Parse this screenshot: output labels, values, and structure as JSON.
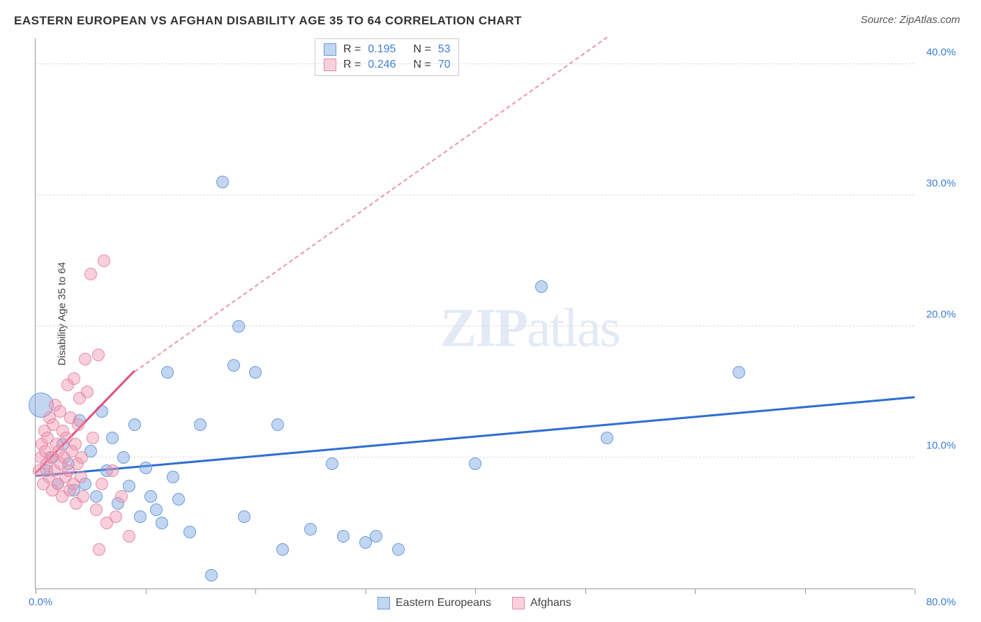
{
  "header": {
    "title": "EASTERN EUROPEAN VS AFGHAN DISABILITY AGE 35 TO 64 CORRELATION CHART",
    "source": "Source: ZipAtlas.com"
  },
  "chart": {
    "type": "scatter",
    "ylabel": "Disability Age 35 to 64",
    "xlim": [
      0,
      80
    ],
    "ylim": [
      0,
      42
    ],
    "x_origin_label": "0.0%",
    "x_max_label": "80.0%",
    "y_ticks": [
      {
        "value": 10,
        "label": "10.0%"
      },
      {
        "value": 20,
        "label": "20.0%"
      },
      {
        "value": 30,
        "label": "30.0%"
      },
      {
        "value": 40,
        "label": "40.0%"
      }
    ],
    "x_ticks": [
      0,
      10,
      20,
      30,
      40,
      50,
      60,
      70,
      80
    ],
    "background_color": "#ffffff",
    "grid_color": "#dddddd",
    "axis_color": "#999999",
    "tick_label_color": "#3b7dd8",
    "watermark": "ZIPatlas",
    "series": [
      {
        "name": "Eastern Europeans",
        "fill": "rgba(120,165,225,0.45)",
        "stroke": "#6a9be0",
        "marker_radius": 9,
        "trend": {
          "x1": 0,
          "y1": 8.5,
          "x2": 80,
          "y2": 14.5,
          "color": "#2f6fd0",
          "width": 3,
          "dash": "solid",
          "extend_dash": false
        },
        "points": [
          [
            0.5,
            14.0,
            18
          ],
          [
            1,
            9
          ],
          [
            1.5,
            10
          ],
          [
            2,
            8
          ],
          [
            2.5,
            11
          ],
          [
            3,
            9.5
          ],
          [
            3.5,
            7.5
          ],
          [
            4,
            12.8
          ],
          [
            4.5,
            8
          ],
          [
            5,
            10.5
          ],
          [
            5.5,
            7
          ],
          [
            6,
            13.5
          ],
          [
            6.5,
            9
          ],
          [
            7,
            11.5
          ],
          [
            7.5,
            6.5
          ],
          [
            8,
            10
          ],
          [
            8.5,
            7.8
          ],
          [
            9,
            12.5
          ],
          [
            9.5,
            5.5
          ],
          [
            10,
            9.2
          ],
          [
            10.5,
            7
          ],
          [
            11,
            6
          ],
          [
            11.5,
            5
          ],
          [
            12,
            16.5
          ],
          [
            12.5,
            8.5
          ],
          [
            13,
            6.8
          ],
          [
            14,
            4.3
          ],
          [
            15,
            12.5
          ],
          [
            16,
            1
          ],
          [
            17,
            31
          ],
          [
            18,
            17
          ],
          [
            18.5,
            20
          ],
          [
            19,
            5.5
          ],
          [
            20,
            16.5
          ],
          [
            22,
            12.5
          ],
          [
            22.5,
            3
          ],
          [
            25,
            4.5
          ],
          [
            27,
            9.5
          ],
          [
            28,
            4
          ],
          [
            30,
            3.5
          ],
          [
            31,
            4
          ],
          [
            33,
            3
          ],
          [
            40,
            9.5
          ],
          [
            46,
            23
          ],
          [
            52,
            11.5
          ],
          [
            64,
            16.5
          ]
        ]
      },
      {
        "name": "Afghans",
        "fill": "rgba(240,150,175,0.45)",
        "stroke": "#e88aa5",
        "marker_radius": 9,
        "trend": {
          "x1": 0,
          "y1": 8.7,
          "x2": 9,
          "y2": 16.5,
          "color": "#e05080",
          "width": 3,
          "dash": "solid",
          "extend_dash": true,
          "dash_x2": 52,
          "dash_y2": 42
        },
        "points": [
          [
            0.3,
            9
          ],
          [
            0.5,
            10
          ],
          [
            0.6,
            11
          ],
          [
            0.7,
            8
          ],
          [
            0.8,
            12
          ],
          [
            0.9,
            10.5
          ],
          [
            1,
            9.5
          ],
          [
            1.1,
            11.5
          ],
          [
            1.2,
            8.5
          ],
          [
            1.3,
            13
          ],
          [
            1.4,
            10
          ],
          [
            1.5,
            7.5
          ],
          [
            1.6,
            12.5
          ],
          [
            1.7,
            9
          ],
          [
            1.8,
            14
          ],
          [
            1.9,
            11
          ],
          [
            2,
            8
          ],
          [
            2.1,
            10.5
          ],
          [
            2.2,
            13.5
          ],
          [
            2.3,
            9.5
          ],
          [
            2.4,
            7
          ],
          [
            2.5,
            12
          ],
          [
            2.6,
            10
          ],
          [
            2.7,
            8.5
          ],
          [
            2.8,
            11.5
          ],
          [
            2.9,
            15.5
          ],
          [
            3,
            9
          ],
          [
            3.1,
            7.5
          ],
          [
            3.2,
            13
          ],
          [
            3.3,
            10.5
          ],
          [
            3.4,
            8
          ],
          [
            3.5,
            16
          ],
          [
            3.6,
            11
          ],
          [
            3.7,
            6.5
          ],
          [
            3.8,
            9.5
          ],
          [
            3.9,
            12.5
          ],
          [
            4,
            14.5
          ],
          [
            4.1,
            8.5
          ],
          [
            4.2,
            10
          ],
          [
            4.3,
            7
          ],
          [
            4.5,
            17.5
          ],
          [
            4.7,
            15
          ],
          [
            5,
            24
          ],
          [
            5.2,
            11.5
          ],
          [
            5.5,
            6
          ],
          [
            5.7,
            17.8
          ],
          [
            6,
            8
          ],
          [
            6.2,
            25
          ],
          [
            6.5,
            5
          ],
          [
            7,
            9
          ],
          [
            7.3,
            5.5
          ],
          [
            7.8,
            7
          ],
          [
            8.5,
            4
          ],
          [
            5.8,
            3
          ]
        ]
      }
    ],
    "stats_box": {
      "rows": [
        {
          "swatch_fill": "rgba(120,165,225,0.45)",
          "swatch_stroke": "#6a9be0",
          "r_label": "R =",
          "r_value": "0.195",
          "n_label": "N =",
          "n_value": "53"
        },
        {
          "swatch_fill": "rgba(240,150,175,0.45)",
          "swatch_stroke": "#e88aa5",
          "r_label": "R =",
          "r_value": "0.246",
          "n_label": "N =",
          "n_value": "70"
        }
      ]
    },
    "bottom_legend": [
      {
        "swatch_fill": "rgba(120,165,225,0.45)",
        "swatch_stroke": "#6a9be0",
        "label": "Eastern Europeans"
      },
      {
        "swatch_fill": "rgba(240,150,175,0.45)",
        "swatch_stroke": "#e88aa5",
        "label": "Afghans"
      }
    ]
  }
}
